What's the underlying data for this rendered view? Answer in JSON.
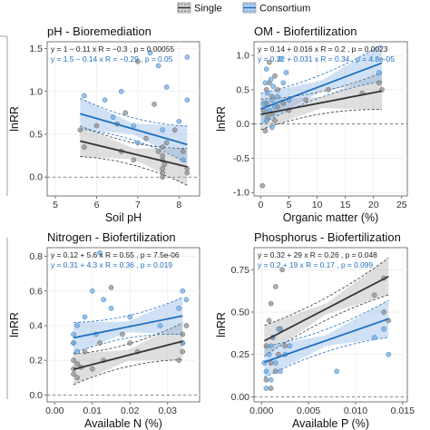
{
  "legend": {
    "items": [
      {
        "label": "Single",
        "color": "#333333",
        "fill": "#d9d9d9"
      },
      {
        "label": "Consortium",
        "color": "#1f6fbf",
        "fill": "#bcd6f0"
      }
    ]
  },
  "colors": {
    "single": "#333333",
    "consortium": "#1f6fbf",
    "single_point": "#8c8c8c",
    "consortium_point": "#6fa8dc"
  },
  "chart_data": [
    {
      "type": "scatter",
      "title": "pH - Bioremediation",
      "xlabel": "Soil pH",
      "ylabel": "lnRR",
      "xlim": [
        4.8,
        8.5
      ],
      "ylim": [
        -0.22,
        1.58
      ],
      "xticks": [
        "5",
        "6",
        "7",
        "8"
      ],
      "xtick_values": [
        5,
        6,
        7,
        8
      ],
      "yticks": [
        "0.0",
        "0.5",
        "1.0",
        "1.5"
      ],
      "ytick_values": [
        0,
        0.5,
        1.0,
        1.5
      ],
      "equations": [
        {
          "text": "y = 1 − 0.11 x    R = −0.3 , p = 0.00055",
          "series": "single"
        },
        {
          "text": "y = 1.5 − 0.14 x  R = −0.29 , p = 0.05",
          "series": "consortium"
        }
      ],
      "series": [
        {
          "name": "Single",
          "line": [
            [
              5.6,
              0.42
            ],
            [
              8.2,
              0.12
            ]
          ],
          "points": [
            [
              5.6,
              0.55
            ],
            [
              5.7,
              0.35
            ],
            [
              6.0,
              0.6
            ],
            [
              6.5,
              0.62
            ],
            [
              6.6,
              0.3
            ],
            [
              6.7,
              0.75
            ],
            [
              7.2,
              0.45
            ],
            [
              7.5,
              0.3
            ],
            [
              7.6,
              0.2
            ],
            [
              7.6,
              0.05
            ],
            [
              7.6,
              0.0
            ],
            [
              7.6,
              0.35
            ],
            [
              7.6,
              0.1
            ],
            [
              7.6,
              0.25
            ],
            [
              7.65,
              0.15
            ],
            [
              7.7,
              0.4
            ],
            [
              7.9,
              0.55
            ],
            [
              8.1,
              0.3
            ],
            [
              8.2,
              0.1
            ],
            [
              8.2,
              0.05
            ],
            [
              7.0,
              1.35
            ],
            [
              7.4,
              0.85
            ],
            [
              6.9,
              0.2
            ]
          ]
        },
        {
          "name": "Consortium",
          "line": [
            [
              5.6,
              0.74
            ],
            [
              8.2,
              0.38
            ]
          ],
          "points": [
            [
              5.7,
              0.95
            ],
            [
              6.2,
              0.9
            ],
            [
              6.6,
              1.0
            ],
            [
              6.9,
              0.6
            ],
            [
              7.0,
              0.4
            ],
            [
              7.3,
              1.45
            ],
            [
              7.5,
              1.3
            ],
            [
              7.6,
              0.55
            ],
            [
              7.7,
              1.05
            ],
            [
              8.0,
              0.65
            ],
            [
              8.2,
              1.4
            ],
            [
              8.2,
              0.9
            ],
            [
              8.1,
              0.2
            ],
            [
              6.4,
              0.7
            ]
          ]
        }
      ],
      "panel": "top-left"
    },
    {
      "type": "scatter",
      "title": "OM - Biofertilization",
      "xlabel": "Organic matter (%)",
      "ylabel": "lnRR",
      "xlim": [
        -1.2,
        26
      ],
      "ylim": [
        -1.05,
        1.2
      ],
      "xticks": [
        "0",
        "5",
        "10",
        "15",
        "20",
        "25"
      ],
      "xtick_values": [
        0,
        5,
        10,
        15,
        20,
        25
      ],
      "yticks": [
        "-1.0",
        "-0.5",
        "0.0",
        "0.5",
        "1.0"
      ],
      "ytick_values": [
        -1.0,
        -0.5,
        0,
        0.5,
        1.0
      ],
      "equations": [
        {
          "text": "y = 0.14 + 0.016 x  R = 0.2 , p = 0.0023",
          "series": "single"
        },
        {
          "text": "y = 0.22 + 0.031 x  R = 0.34 , p = 4.8e-05",
          "series": "consortium"
        }
      ],
      "series": [
        {
          "name": "Single",
          "line": [
            [
              0,
              0.14
            ],
            [
              21.5,
              0.48
            ]
          ],
          "points": [
            [
              0.5,
              0.2
            ],
            [
              1,
              0.5
            ],
            [
              1,
              0.3
            ],
            [
              1.2,
              0.1
            ],
            [
              1.5,
              0.6
            ],
            [
              2,
              0.15
            ],
            [
              2,
              0.4
            ],
            [
              2.5,
              0.05
            ],
            [
              3,
              0.25
            ],
            [
              3,
              0.5
            ],
            [
              4,
              0.3
            ],
            [
              5,
              0.2
            ],
            [
              8,
              0.35
            ],
            [
              12,
              0.5
            ],
            [
              18,
              0.45
            ],
            [
              21,
              0.6
            ],
            [
              21.5,
              0.5
            ],
            [
              0.8,
              -0.1
            ],
            [
              1.5,
              0.9
            ],
            [
              2.5,
              0.7
            ],
            [
              0.3,
              -0.9
            ]
          ]
        },
        {
          "name": "Consortium",
          "line": [
            [
              0,
              0.22
            ],
            [
              21.5,
              0.89
            ]
          ],
          "points": [
            [
              0.5,
              0.3
            ],
            [
              0.8,
              0.6
            ],
            [
              1,
              0.8
            ],
            [
              1.2,
              0.45
            ],
            [
              1.5,
              0.2
            ],
            [
              1.8,
              0.65
            ],
            [
              2,
              0.35
            ],
            [
              2.2,
              0.55
            ],
            [
              2.5,
              0.25
            ],
            [
              3,
              0.4
            ],
            [
              4,
              0.6
            ],
            [
              5,
              0.35
            ],
            [
              4.5,
              0.75
            ],
            [
              1,
              0.05
            ],
            [
              2,
              -0.05
            ],
            [
              21,
              0.75
            ],
            [
              3.5,
              0.95
            ]
          ]
        }
      ],
      "panel": "top-right"
    },
    {
      "type": "scatter",
      "title": "Nitrogen - Biofertilization",
      "xlabel": "Available N (%)",
      "ylabel": "lnRR",
      "xlim": [
        -0.002,
        0.0385
      ],
      "ylim": [
        -0.04,
        0.85
      ],
      "xticks": [
        "0.00",
        "0.01",
        "0.02",
        "0.03"
      ],
      "xtick_values": [
        0,
        0.01,
        0.02,
        0.03
      ],
      "yticks": [
        "0.0",
        "0.2",
        "0.4",
        "0.6",
        "0.8"
      ],
      "ytick_values": [
        0,
        0.2,
        0.4,
        0.6,
        0.8
      ],
      "equations": [
        {
          "text": "y = 0.12 + 5.6 x  R = 0.55 , p = 7.5e-06",
          "series": "single"
        },
        {
          "text": "y = 0.31 + 4.3 x  R = 0.36 , p = 0.019",
          "series": "consortium"
        }
      ],
      "series": [
        {
          "name": "Single",
          "line": [
            [
              0.005,
              0.148
            ],
            [
              0.034,
              0.31
            ]
          ],
          "points": [
            [
              0.005,
              0.12
            ],
            [
              0.005,
              0.15
            ],
            [
              0.005,
              0.2
            ],
            [
              0.006,
              0.1
            ],
            [
              0.006,
              0.18
            ],
            [
              0.008,
              0.25
            ],
            [
              0.01,
              0.15
            ],
            [
              0.012,
              0.3
            ],
            [
              0.013,
              0.2
            ],
            [
              0.015,
              0.62
            ],
            [
              0.018,
              0.35
            ],
            [
              0.02,
              0.3
            ],
            [
              0.022,
              0.25
            ],
            [
              0.033,
              0.2
            ],
            [
              0.034,
              0.3
            ],
            [
              0.034,
              0.35
            ],
            [
              0.034,
              0.25
            ],
            [
              0.035,
              0.4
            ],
            [
              0.005,
              0.3
            ],
            [
              0.007,
              0.16
            ]
          ]
        },
        {
          "name": "Consortium",
          "line": [
            [
              0.005,
              0.33
            ],
            [
              0.034,
              0.456
            ]
          ],
          "points": [
            [
              0.005,
              0.35
            ],
            [
              0.005,
              0.3
            ],
            [
              0.006,
              0.4
            ],
            [
              0.008,
              0.45
            ],
            [
              0.01,
              0.6
            ],
            [
              0.011,
              0.35
            ],
            [
              0.012,
              0.82
            ],
            [
              0.013,
              0.55
            ],
            [
              0.015,
              0.5
            ],
            [
              0.02,
              0.45
            ],
            [
              0.028,
              0.4
            ],
            [
              0.033,
              0.5
            ],
            [
              0.034,
              0.6
            ],
            [
              0.034,
              0.3
            ],
            [
              0.035,
              0.55
            ],
            [
              0.006,
              0.25
            ]
          ]
        }
      ],
      "panel": "bottom-left"
    },
    {
      "type": "scatter",
      "title": "Phosphorus - Biofertilization",
      "xlabel": "Available P (%)",
      "ylabel": "lnRR",
      "xlim": [
        -0.0008,
        0.0155
      ],
      "ylim": [
        -0.03,
        0.88
      ],
      "xticks": [
        "0.000",
        "0.005",
        "0.010",
        "0.015"
      ],
      "xtick_values": [
        0,
        0.005,
        0.01,
        0.015
      ],
      "yticks": [
        "0.00",
        "0.25",
        "0.50",
        "0.75"
      ],
      "ytick_values": [
        0,
        0.25,
        0.5,
        0.75
      ],
      "equations": [
        {
          "text": "y = 0.32 + 29 x  R = 0.26 , p = 0.048",
          "series": "single"
        },
        {
          "text": "y = 0.2 + 19 x   R = 0.17 , p = 0.099",
          "series": "consortium"
        }
      ],
      "series": [
        {
          "name": "Single",
          "line": [
            [
              0.0003,
              0.33
            ],
            [
              0.0135,
              0.71
            ]
          ],
          "points": [
            [
              0.0005,
              0.3
            ],
            [
              0.0008,
              0.45
            ],
            [
              0.001,
              0.2
            ],
            [
              0.001,
              0.55
            ],
            [
              0.0012,
              0.35
            ],
            [
              0.0015,
              0.65
            ],
            [
              0.0018,
              0.25
            ],
            [
              0.002,
              0.4
            ],
            [
              0.0022,
              0.75
            ],
            [
              0.0005,
              0.1
            ],
            [
              0.001,
              0.05
            ],
            [
              0.0025,
              0.3
            ],
            [
              0.013,
              0.7
            ],
            [
              0.013,
              0.5
            ],
            [
              0.0135,
              0.45
            ],
            [
              0.012,
              0.6
            ],
            [
              0.0015,
              0.15
            ]
          ]
        },
        {
          "name": "Consortium",
          "line": [
            [
              0.0003,
              0.205
            ],
            [
              0.0135,
              0.46
            ]
          ],
          "points": [
            [
              0.0003,
              0.2
            ],
            [
              0.0005,
              0.15
            ],
            [
              0.0008,
              0.25
            ],
            [
              0.001,
              0.1
            ],
            [
              0.001,
              0.3
            ],
            [
              0.0012,
              0.35
            ],
            [
              0.0015,
              0.2
            ],
            [
              0.0018,
              0.4
            ],
            [
              0.002,
              0.15
            ],
            [
              0.0025,
              0.25
            ],
            [
              0.003,
              0.3
            ],
            [
              0.008,
              0.15
            ],
            [
              0.012,
              0.35
            ],
            [
              0.013,
              0.4
            ],
            [
              0.0135,
              0.25
            ],
            [
              0.0005,
              0.05
            ]
          ]
        }
      ],
      "panel": "bottom-right"
    }
  ]
}
